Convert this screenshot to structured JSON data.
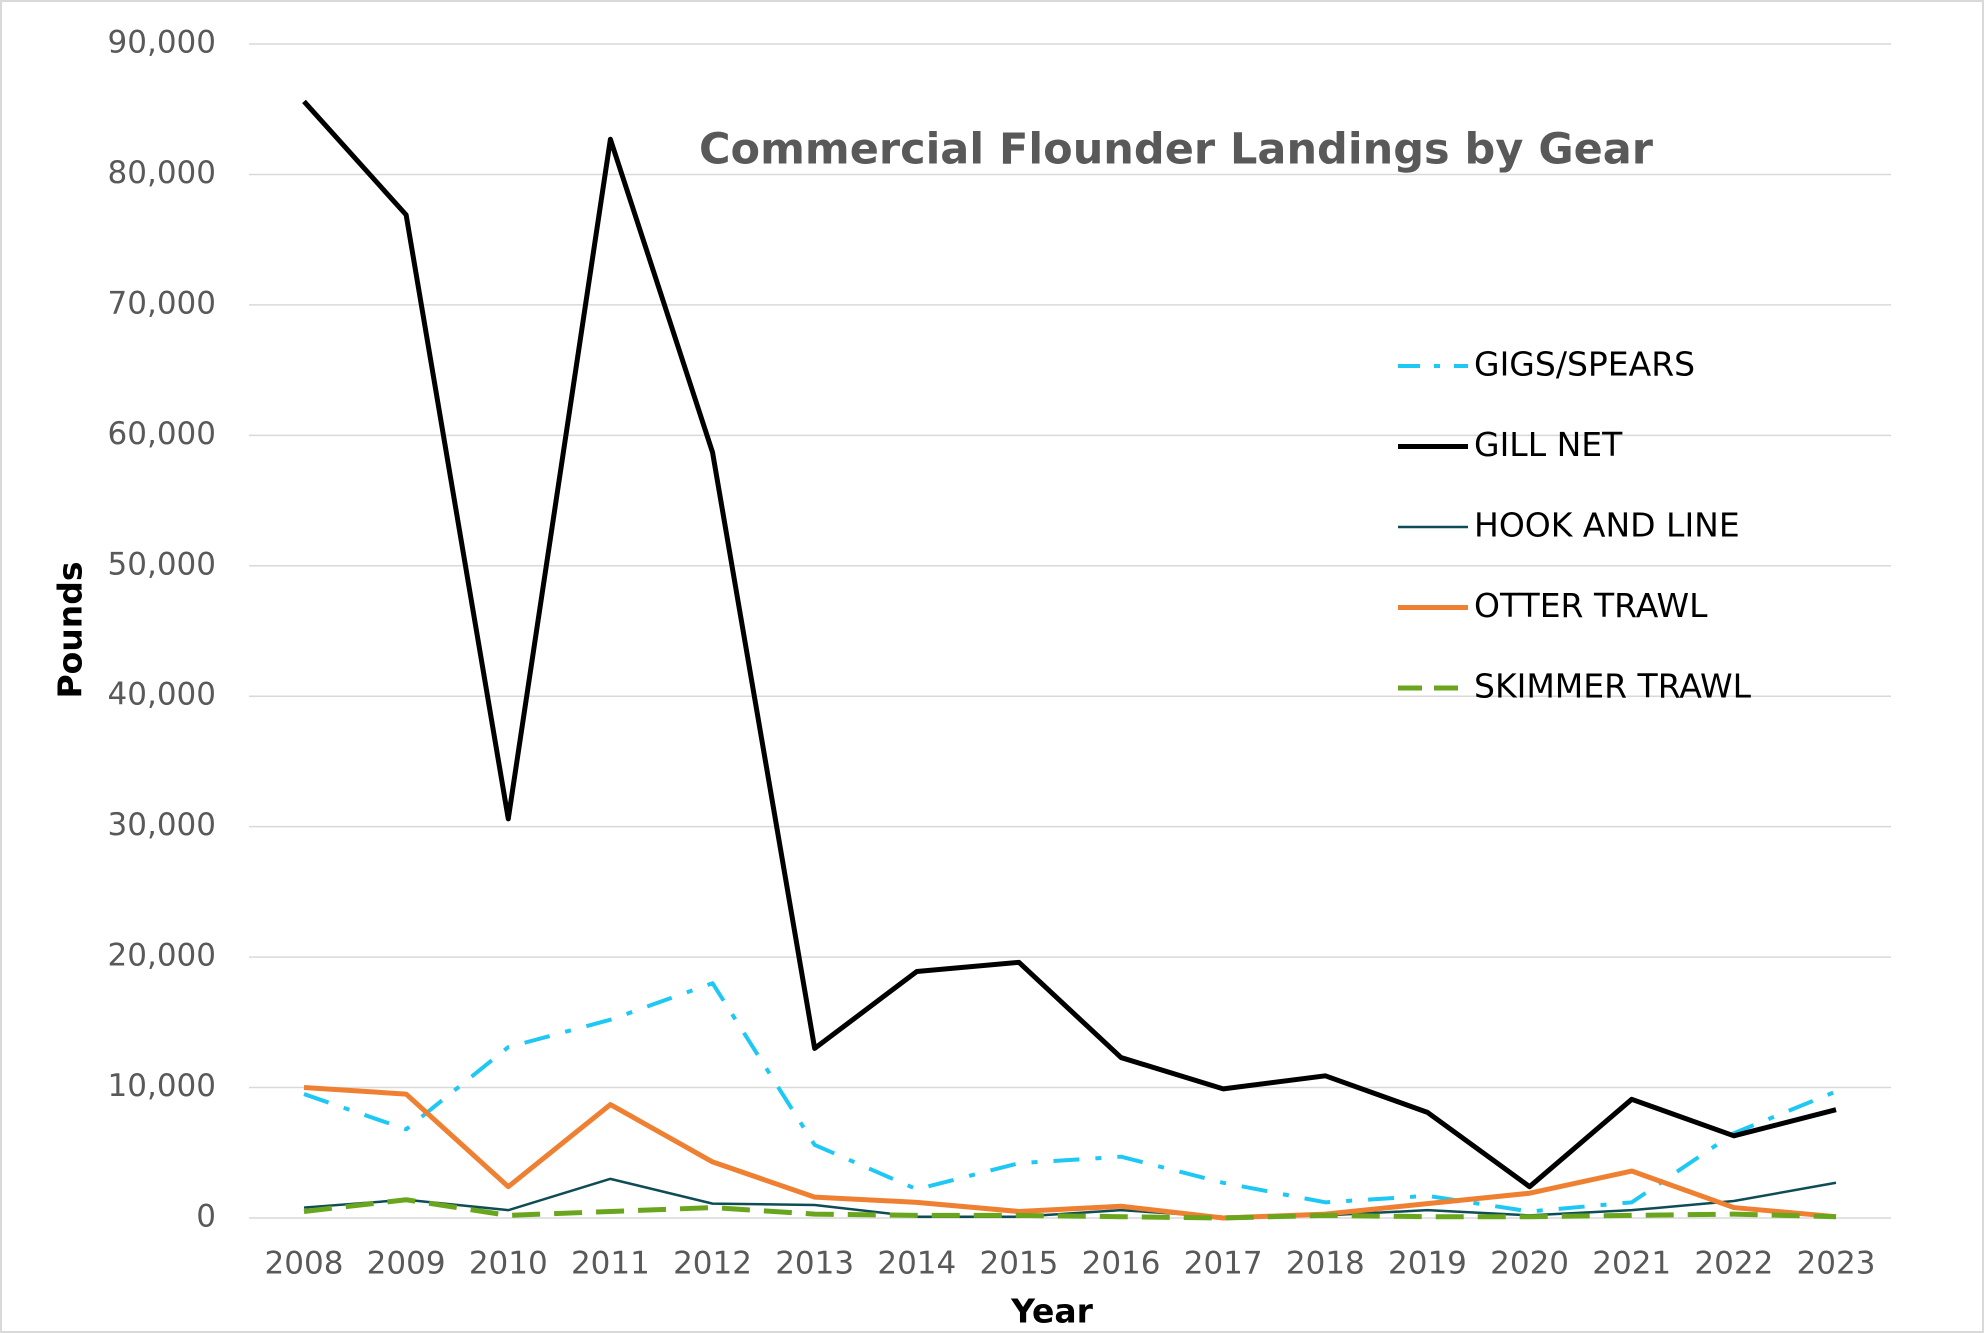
{
  "chart_data": {
    "type": "line",
    "title": "Commercial Flounder Landings by Gear",
    "xlabel": "Year",
    "ylabel": "Pounds",
    "categories": [
      "2008",
      "2009",
      "2010",
      "2011",
      "2012",
      "2013",
      "2014",
      "2015",
      "2016",
      "2017",
      "2018",
      "2019",
      "2020",
      "2021",
      "2022",
      "2023"
    ],
    "series": [
      {
        "name": "GIGS/SPEARS",
        "color": "#1ec8f5",
        "dash": "dashdot",
        "width": 4,
        "values": [
          9500,
          6800,
          13100,
          15200,
          18000,
          5600,
          2200,
          4200,
          4700,
          2700,
          1200,
          1700,
          500,
          1200,
          6500,
          9700
        ]
      },
      {
        "name": "GILL NET",
        "color": "#000000",
        "dash": "solid",
        "width": 5,
        "values": [
          85600,
          76900,
          30600,
          82700,
          58700,
          13000,
          18900,
          19600,
          12300,
          9900,
          10900,
          8100,
          2400,
          9100,
          6300,
          8300
        ]
      },
      {
        "name": "HOOK AND LINE",
        "color": "#0e4d55",
        "dash": "solid",
        "width": 2.5,
        "values": [
          800,
          1400,
          600,
          3000,
          1100,
          1000,
          100,
          100,
          600,
          100,
          200,
          600,
          200,
          600,
          1300,
          2700
        ]
      },
      {
        "name": "OTTER TRAWL",
        "color": "#ef8032",
        "dash": "solid",
        "width": 5,
        "values": [
          10000,
          9500,
          2400,
          8700,
          4300,
          1600,
          1200,
          500,
          900,
          0,
          300,
          1100,
          1900,
          3600,
          800,
          100
        ]
      },
      {
        "name": "SKIMMER TRAWL",
        "color": "#6aa51e",
        "dash": "dashed",
        "width": 5,
        "values": [
          500,
          1400,
          200,
          500,
          800,
          300,
          200,
          200,
          100,
          0,
          200,
          100,
          100,
          200,
          300,
          100
        ]
      }
    ],
    "ylim": [
      0,
      90000
    ],
    "yticks": [
      0,
      {
        "value": 10000,
        "label": "10,000"
      },
      {
        "value": 20000,
        "label": "20,000"
      },
      {
        "value": 30000,
        "label": "30,000"
      },
      {
        "value": 40000,
        "label": "40,000"
      },
      {
        "value": 50000,
        "label": "50,000"
      },
      {
        "value": 60000,
        "label": "60,000"
      },
      {
        "value": 70000,
        "label": "70,000"
      },
      {
        "value": 80000,
        "label": "80,000"
      },
      {
        "value": 90000,
        "label": "90,000"
      }
    ],
    "grid": true,
    "legend": "right"
  }
}
